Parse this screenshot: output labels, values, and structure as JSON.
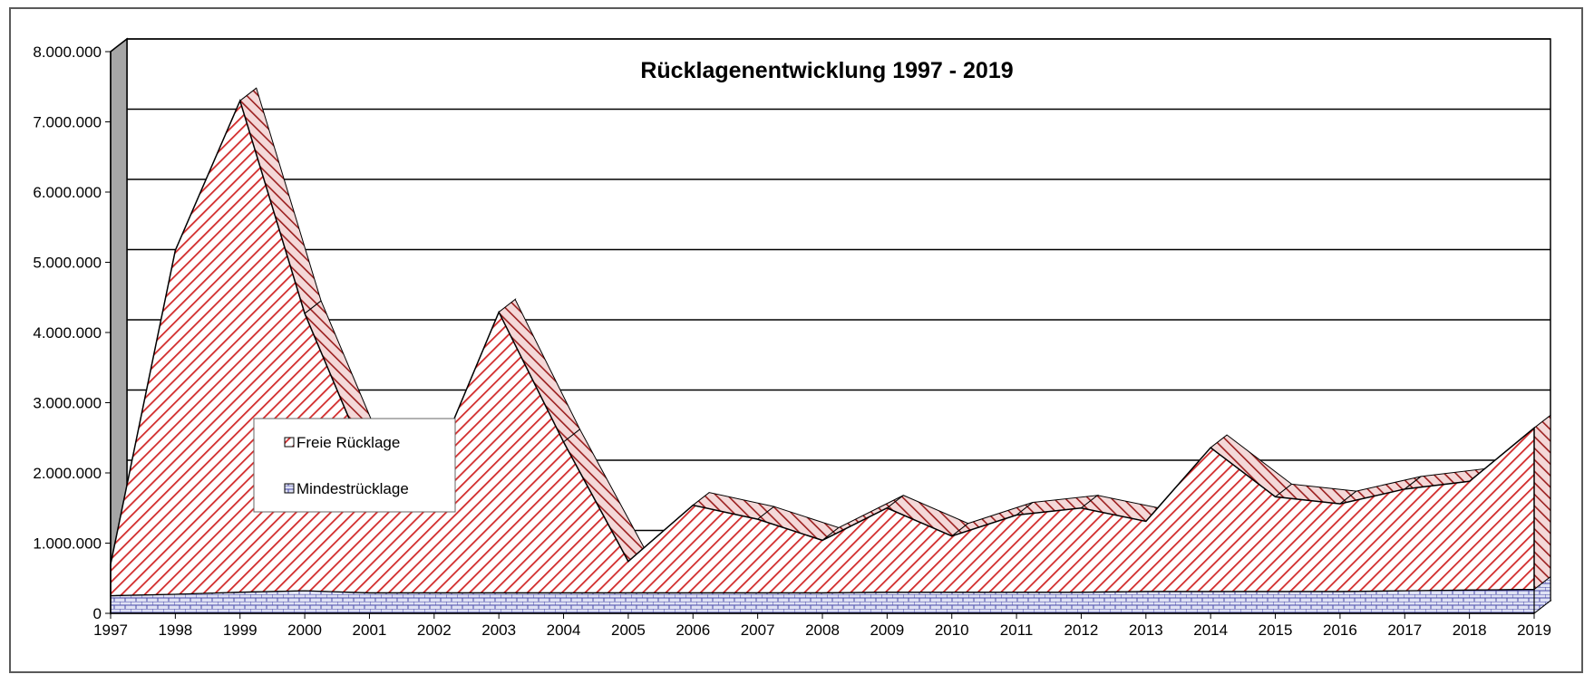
{
  "chart_data": {
    "type": "area",
    "stacked": true,
    "title": "Rücklagenentwicklung 1997 - 2019",
    "x": [
      "1997",
      "1998",
      "1999",
      "2000",
      "2001",
      "2002",
      "2003",
      "2004",
      "2005",
      "2006",
      "2007",
      "2008",
      "2009",
      "2010",
      "2011",
      "2012",
      "2013",
      "2014",
      "2015",
      "2016",
      "2017",
      "2018",
      "2019"
    ],
    "ylim": [
      0,
      8000000
    ],
    "yticks": [
      "0",
      "1.000.000",
      "2.000.000",
      "3.000.000",
      "4.000.000",
      "5.000.000",
      "6.000.000",
      "7.000.000",
      "8.000.000"
    ],
    "ytick_values": [
      0,
      1000000,
      2000000,
      3000000,
      4000000,
      5000000,
      6000000,
      7000000,
      8000000
    ],
    "grid": true,
    "legend_position": "left-center",
    "series": [
      {
        "name": "Mindestrücklage",
        "color": "#4a4aa8",
        "fill": "#dfe2f4",
        "values": [
          250000,
          270000,
          300000,
          320000,
          290000,
          290000,
          290000,
          290000,
          290000,
          290000,
          290000,
          290000,
          300000,
          300000,
          300000,
          300000,
          310000,
          310000,
          310000,
          310000,
          320000,
          330000,
          340000
        ]
      },
      {
        "name": "Freie Rücklage",
        "color": "#d22b2b",
        "fill": "#ffffff",
        "values": [
          450000,
          4900000,
          7000000,
          3950000,
          1800000,
          1800000,
          4000000,
          2150000,
          450000,
          1250000,
          1050000,
          750000,
          1200000,
          800000,
          1100000,
          1200000,
          1000000,
          2050000,
          1350000,
          1250000,
          1450000,
          1550000,
          2300000
        ]
      }
    ]
  }
}
